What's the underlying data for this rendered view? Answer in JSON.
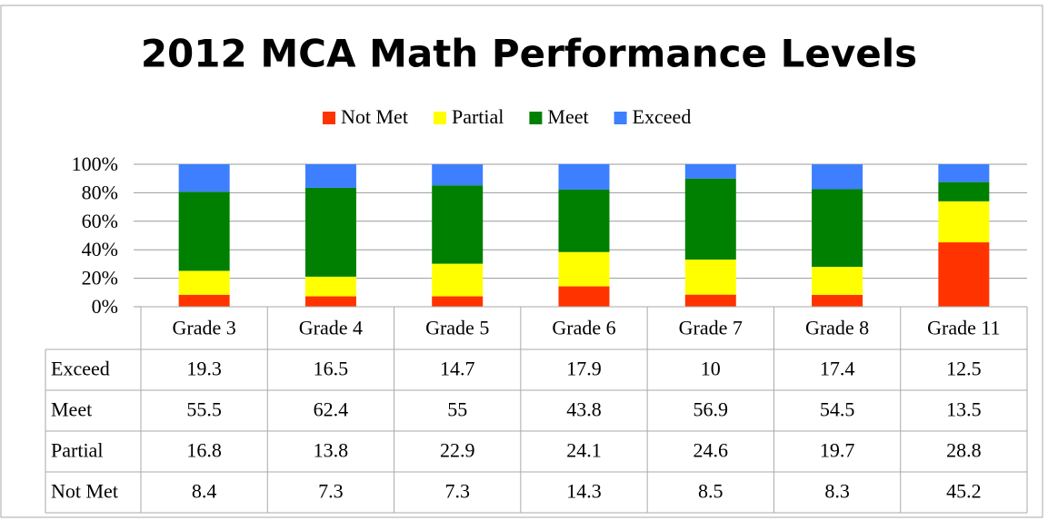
{
  "chart_data": {
    "type": "bar",
    "stacked": true,
    "title": "2012 MCA Math Performance Levels",
    "categories": [
      "Grade 3",
      "Grade 4",
      "Grade 5",
      "Grade 6",
      "Grade 7",
      "Grade 8",
      "Grade 11"
    ],
    "series": [
      {
        "name": "Not Met",
        "color": "#ff3300",
        "values": [
          8.4,
          7.3,
          7.3,
          14.3,
          8.5,
          8.3,
          45.2
        ]
      },
      {
        "name": "Partial",
        "color": "#ffff00",
        "values": [
          16.8,
          13.8,
          22.9,
          24.1,
          24.6,
          19.7,
          28.8
        ]
      },
      {
        "name": "Meet",
        "color": "#008000",
        "values": [
          55.5,
          62.4,
          55,
          43.8,
          56.9,
          54.5,
          13.5
        ]
      },
      {
        "name": "Exceed",
        "color": "#3d7fff",
        "values": [
          19.3,
          16.5,
          14.7,
          17.9,
          10,
          17.4,
          12.5
        ]
      }
    ],
    "ylim": [
      0,
      100
    ],
    "yticks": [
      {
        "value": 0,
        "label": "0%"
      },
      {
        "value": 20,
        "label": "20%"
      },
      {
        "value": 40,
        "label": "40%"
      },
      {
        "value": 60,
        "label": "60%"
      },
      {
        "value": 80,
        "label": "80%"
      },
      {
        "value": 100,
        "label": "100%"
      }
    ],
    "grid": true,
    "legend": "top",
    "data_table": true
  }
}
